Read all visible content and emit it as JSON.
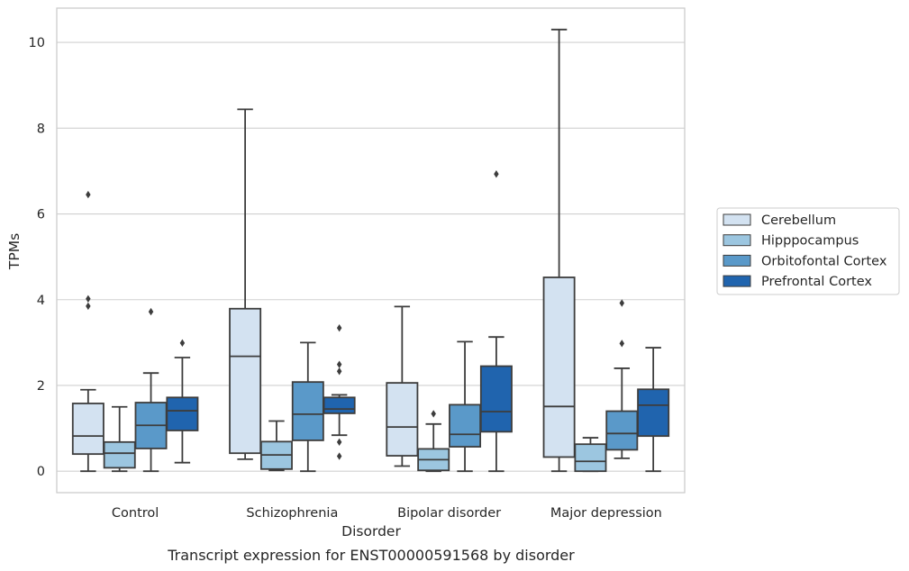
{
  "caption": "Transcript expression for ENST00000591568 by disorder",
  "chart_data": {
    "type": "boxplot",
    "xlabel": "Disorder",
    "ylabel": "TPMs",
    "ylim": [
      -0.5,
      10.8
    ],
    "yticks": [
      0,
      2,
      4,
      6,
      8,
      10
    ],
    "grid": "horizontal",
    "legend_position": "right",
    "categories": [
      "Control",
      "Schizophrenia",
      "Bipolar disorder",
      "Major depression"
    ],
    "series": [
      {
        "name": "Cerebellum",
        "color": "#d3e2f1",
        "boxes": [
          {
            "whislo": 0.0,
            "q1": 0.4,
            "med": 0.82,
            "q3": 1.58,
            "whishi": 1.9,
            "fliers": [
              3.85,
              4.02,
              6.45
            ]
          },
          {
            "whislo": 0.28,
            "q1": 0.42,
            "med": 2.68,
            "q3": 3.79,
            "whishi": 8.44,
            "fliers": []
          },
          {
            "whislo": 0.12,
            "q1": 0.36,
            "med": 1.03,
            "q3": 2.06,
            "whishi": 3.84,
            "fliers": []
          },
          {
            "whislo": 0.0,
            "q1": 0.33,
            "med": 1.51,
            "q3": 4.52,
            "whishi": 10.3,
            "fliers": []
          }
        ]
      },
      {
        "name": "Hipppocampus",
        "color": "#9cc6e0",
        "boxes": [
          {
            "whislo": 0.0,
            "q1": 0.08,
            "med": 0.42,
            "q3": 0.68,
            "whishi": 1.5,
            "fliers": []
          },
          {
            "whislo": 0.02,
            "q1": 0.05,
            "med": 0.38,
            "q3": 0.69,
            "whishi": 1.17,
            "fliers": []
          },
          {
            "whislo": 0.0,
            "q1": 0.02,
            "med": 0.27,
            "q3": 0.52,
            "whishi": 1.1,
            "fliers": [
              1.34
            ]
          },
          {
            "whislo": 0.0,
            "q1": 0.0,
            "med": 0.23,
            "q3": 0.63,
            "whishi": 0.78,
            "fliers": []
          }
        ]
      },
      {
        "name": "Orbitofontal Cortex",
        "color": "#5a99c9",
        "boxes": [
          {
            "whislo": 0.0,
            "q1": 0.53,
            "med": 1.07,
            "q3": 1.6,
            "whishi": 2.29,
            "fliers": [
              3.72
            ]
          },
          {
            "whislo": 0.0,
            "q1": 0.72,
            "med": 1.33,
            "q3": 2.08,
            "whishi": 3.0,
            "fliers": []
          },
          {
            "whislo": 0.0,
            "q1": 0.57,
            "med": 0.86,
            "q3": 1.55,
            "whishi": 3.02,
            "fliers": []
          },
          {
            "whislo": 0.3,
            "q1": 0.5,
            "med": 0.88,
            "q3": 1.4,
            "whishi": 2.4,
            "fliers": [
              2.98,
              3.92
            ]
          }
        ]
      },
      {
        "name": "Prefrontal Cortex",
        "color": "#2064ae",
        "boxes": [
          {
            "whislo": 0.2,
            "q1": 0.95,
            "med": 1.41,
            "q3": 1.72,
            "whishi": 2.65,
            "fliers": [
              2.99
            ]
          },
          {
            "whislo": 0.84,
            "q1": 1.35,
            "med": 1.45,
            "q3": 1.72,
            "whishi": 1.78,
            "fliers": [
              0.35,
              0.68,
              2.33,
              2.49,
              3.34
            ]
          },
          {
            "whislo": 0.0,
            "q1": 0.92,
            "med": 1.39,
            "q3": 2.45,
            "whishi": 3.13,
            "fliers": [
              6.93
            ]
          },
          {
            "whislo": 0.0,
            "q1": 0.82,
            "med": 1.54,
            "q3": 1.91,
            "whishi": 2.88,
            "fliers": []
          }
        ]
      }
    ]
  }
}
